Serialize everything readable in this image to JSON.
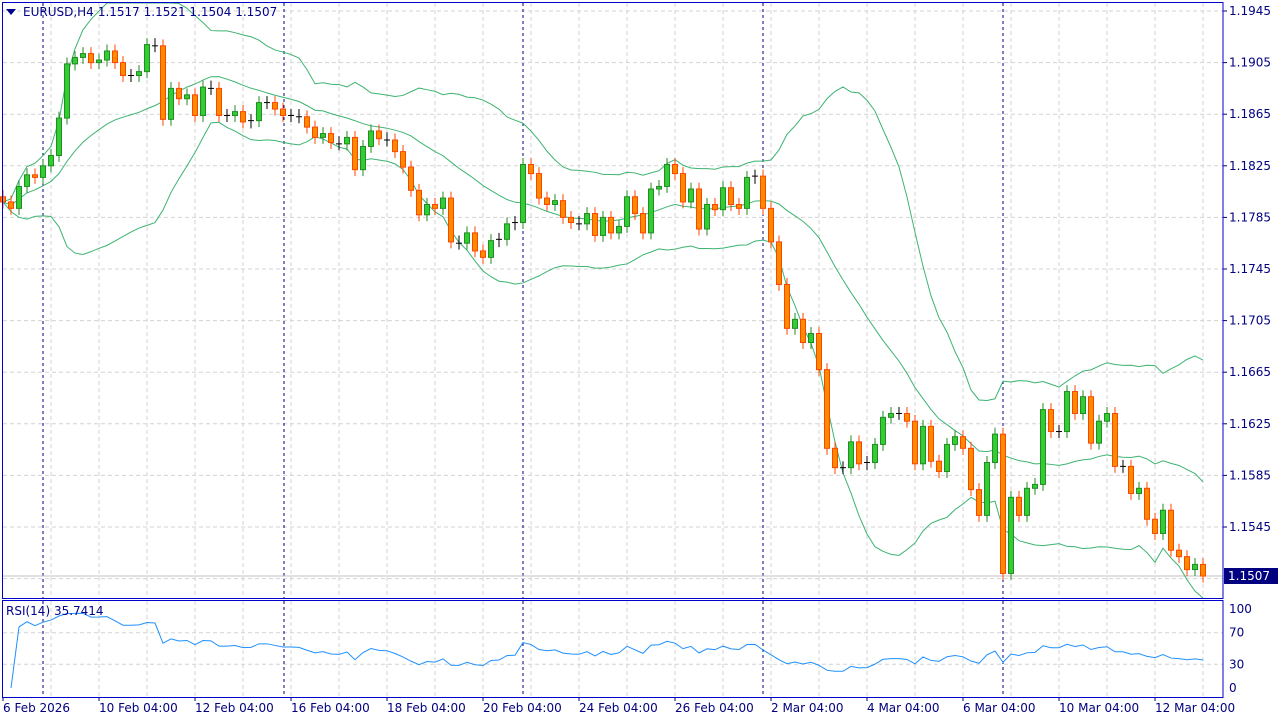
{
  "header": {
    "symbol": "EURUSD,H4",
    "ohlc": "1.1517 1.1521 1.1504 1.1507"
  },
  "rsi": {
    "label": "RSI(14) 35.7414",
    "levels": [
      "100",
      "70",
      "30",
      "0"
    ],
    "level_values": [
      100,
      70,
      30,
      0
    ],
    "color": "#1e90ff"
  },
  "current_price": "1.1507",
  "price_axis": [
    "1.1945",
    "1.1905",
    "1.1865",
    "1.1825",
    "1.1785",
    "1.1745",
    "1.1705",
    "1.1665",
    "1.1625",
    "1.1585",
    "1.1545"
  ],
  "time_axis": [
    "6 Feb 2026",
    "10 Feb 04:00",
    "12 Feb 04:00",
    "16 Feb 04:00",
    "18 Feb 04:00",
    "20 Feb 04:00",
    "24 Feb 04:00",
    "26 Feb 04:00",
    "2 Mar 04:00",
    "4 Mar 04:00",
    "6 Mar 04:00",
    "10 Mar 04:00",
    "12 Mar 04:00"
  ],
  "colors": {
    "bull_body": "#32cd32",
    "bull_border": "#228b22",
    "bear_body": "#ff8c00",
    "bear_border": "#ff4500",
    "bands": "#3cb371",
    "grid": "#d3d3d3",
    "axis": "#000080",
    "separator": "#000080"
  },
  "chart_data": {
    "type": "candlestick",
    "price_range": [
      1.1495,
      1.1955
    ],
    "grid": true,
    "indicators": [
      "Bollinger Bands",
      "RSI(14)"
    ],
    "closes": [
      1.1797,
      1.1792,
      1.1809,
      1.1818,
      1.1816,
      1.1825,
      1.1833,
      1.1862,
      1.1904,
      1.1909,
      1.1912,
      1.1905,
      1.1907,
      1.1914,
      1.1905,
      1.1895,
      1.1895,
      1.1898,
      1.1919,
      1.1918,
      1.1861,
      1.1885,
      1.1877,
      1.188,
      1.1864,
      1.1886,
      1.1885,
      1.1864,
      1.1864,
      1.1867,
      1.1859,
      1.186,
      1.1874,
      1.1874,
      1.1869,
      1.1864,
      1.1864,
      1.1863,
      1.1855,
      1.1847,
      1.185,
      1.1843,
      1.1842,
      1.1847,
      1.1822,
      1.184,
      1.1852,
      1.1846,
      1.1845,
      1.1836,
      1.1824,
      1.1806,
      1.1787,
      1.1795,
      1.1792,
      1.18,
      1.1766,
      1.1765,
      1.1773,
      1.1759,
      1.1754,
      1.1767,
      1.1768,
      1.178,
      1.1781,
      1.1826,
      1.1819,
      1.18,
      1.1795,
      1.1798,
      1.1785,
      1.1781,
      1.178,
      1.1788,
      1.1771,
      1.1785,
      1.1773,
      1.1778,
      1.1801,
      1.1788,
      1.1773,
      1.1807,
      1.1809,
      1.1826,
      1.1819,
      1.1797,
      1.1807,
      1.1776,
      1.1795,
      1.1791,
      1.1808,
      1.1795,
      1.1792,
      1.1816,
      1.1817,
      1.1792,
      1.1766,
      1.1733,
      1.1699,
      1.1706,
      1.1688,
      1.1695,
      1.1667,
      1.1606,
      1.1591,
      1.1591,
      1.1611,
      1.1594,
      1.1595,
      1.1609,
      1.163,
      1.1633,
      1.1633,
      1.1627,
      1.1594,
      1.1623,
      1.1596,
      1.1588,
      1.1609,
      1.1615,
      1.1606,
      1.1574,
      1.1554,
      1.1595,
      1.1617,
      1.1509,
      1.1568,
      1.1554,
      1.1575,
      1.1578,
      1.1636,
      1.1619,
      1.1619,
      1.165,
      1.1633,
      1.1646,
      1.161,
      1.1627,
      1.1633,
      1.1592,
      1.1592,
      1.1571,
      1.1575,
      1.1551,
      1.154,
      1.1558,
      1.1527,
      1.1522,
      1.1512,
      1.1516,
      1.1507
    ]
  }
}
